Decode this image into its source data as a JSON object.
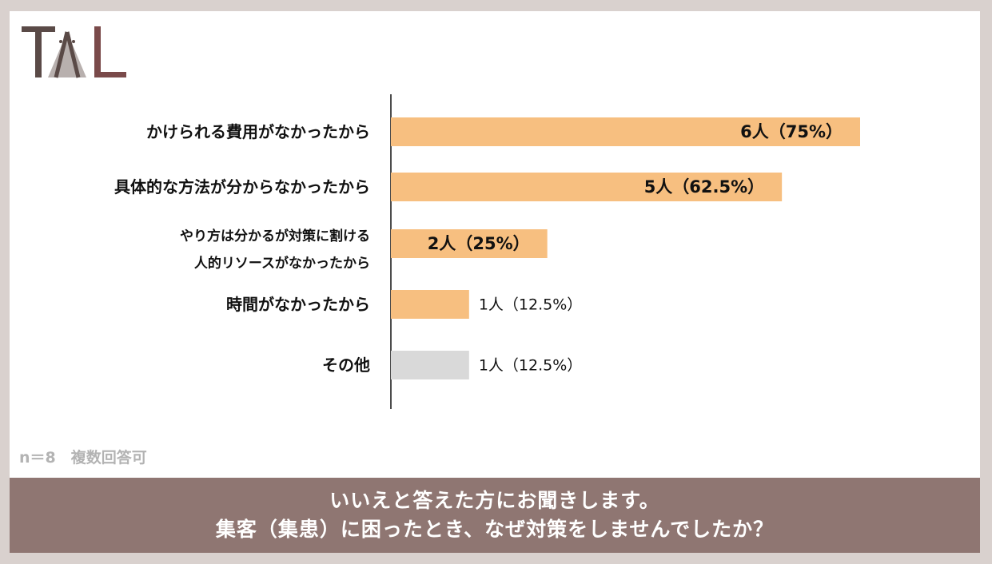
{
  "chart_data": {
    "type": "bar",
    "orientation": "horizontal",
    "categories": [
      "かけられる費用がなかったから",
      "具体的な方法が分からなかったから",
      "やり方は分かるが対策に割ける\n人的リソースがなかったから",
      "時間がなかったから",
      "その他"
    ],
    "values": [
      6,
      5,
      2,
      1,
      1
    ],
    "value_labels": [
      "6人（75%）",
      "5人（62.5%）",
      "2人（25%）",
      "1人（12.5%）",
      "1人（12.5%）"
    ],
    "colors": [
      "#f7bf80",
      "#f7bf80",
      "#f7bf80",
      "#f7bf80",
      "#d9d9d9"
    ],
    "note": "n＝8　複数回答可",
    "question": "いいえと答えた方にお聞きします。\n集客（集患）に困ったとき、なぜ対策をしませんでしたか？"
  }
}
